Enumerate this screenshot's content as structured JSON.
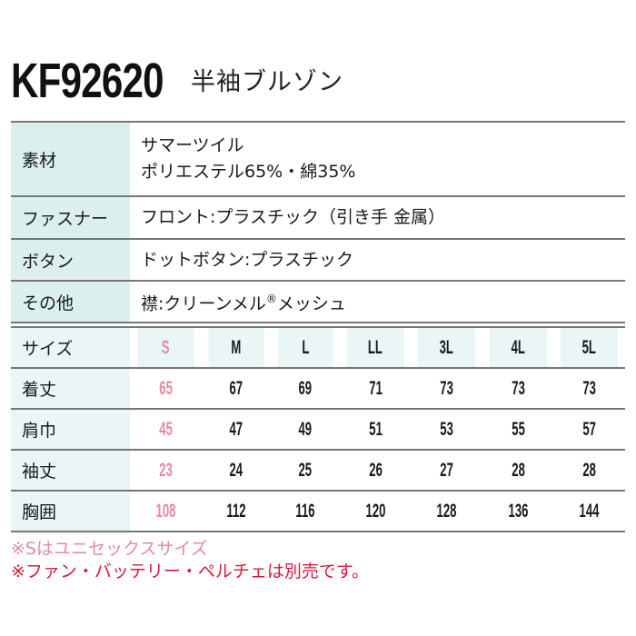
{
  "header": {
    "model_number": "KF92620",
    "product_name": "半袖ブルゾン"
  },
  "spec_table": {
    "rows": [
      {
        "label": "素材",
        "value_lines": [
          "サマーツイル",
          "ポリエステル65%・綿35%"
        ]
      },
      {
        "label": "ファスナー",
        "value": "フロント:プラスチック（引き手 金属）"
      },
      {
        "label": "ボタン",
        "value": "ドットボタン:プラスチック"
      },
      {
        "label": "その他",
        "value_prefix": "襟:クリーンメル",
        "value_mark": "®",
        "value_suffix": "メッシュ"
      }
    ]
  },
  "size_table": {
    "header_label": "サイズ",
    "sizes": [
      "S",
      "M",
      "L",
      "LL",
      "3L",
      "4L",
      "5L"
    ],
    "rows": [
      {
        "label": "着丈",
        "values": [
          "65",
          "67",
          "69",
          "71",
          "73",
          "73",
          "73"
        ]
      },
      {
        "label": "肩巾",
        "values": [
          "45",
          "47",
          "49",
          "51",
          "53",
          "55",
          "57"
        ]
      },
      {
        "label": "袖丈",
        "values": [
          "23",
          "24",
          "25",
          "26",
          "27",
          "28",
          "28"
        ]
      },
      {
        "label": "胸囲",
        "values": [
          "108",
          "112",
          "116",
          "120",
          "128",
          "136",
          "144"
        ]
      }
    ]
  },
  "notes": {
    "unisex": "※Sはユニセックスサイズ",
    "sold_separately": "※ファン・バッテリー・ペルチェは別売です。"
  },
  "colors": {
    "highlight_pink": "#e58aa0",
    "note_red": "#d41a3a",
    "label_bg": "#dcefef",
    "header_bg": "#eaf5f5",
    "rule": "#777777"
  }
}
